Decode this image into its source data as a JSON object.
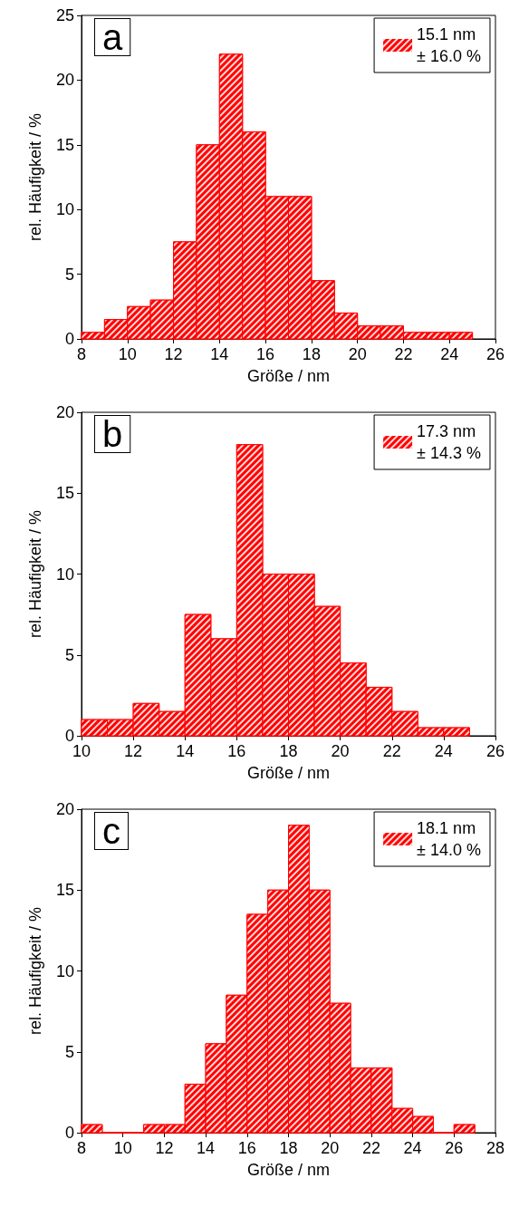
{
  "chart_data": [
    {
      "type": "histogram",
      "annotations": [
        "a"
      ],
      "xlabel": "Größe / nm",
      "ylabel": "rel. Häufigkeit / %",
      "bins": [
        8,
        9,
        10,
        11,
        12,
        13,
        14,
        15,
        16,
        17,
        18,
        19,
        20,
        21,
        22,
        23,
        24,
        25
      ],
      "series": [
        {
          "name": "15.1 nm\n± 16.0 %",
          "color": "#ff0000",
          "values": [
            0.5,
            1.5,
            2.5,
            3,
            7.5,
            15,
            22,
            16,
            11,
            11,
            4.5,
            2,
            1,
            1,
            0.5,
            0.5,
            0.5
          ]
        }
      ],
      "xlim": [
        8,
        26
      ],
      "xticks": [
        8,
        10,
        12,
        14,
        16,
        18,
        20,
        22,
        24,
        26
      ],
      "ylim": [
        0,
        25
      ],
      "yticks": [
        0,
        5,
        10,
        15,
        20,
        25
      ],
      "grid": false,
      "legend": "top right"
    },
    {
      "type": "histogram",
      "annotations": [
        "b"
      ],
      "xlabel": "Größe / nm",
      "ylabel": "rel. Häufigkeit / %",
      "bins": [
        10,
        11,
        12,
        13,
        14,
        15,
        16,
        17,
        18,
        19,
        20,
        21,
        22,
        23,
        24,
        25
      ],
      "series": [
        {
          "name": "17.3 nm\n± 14.3 %",
          "color": "#ff0000",
          "values": [
            1,
            1,
            2,
            1.5,
            7.5,
            6,
            18,
            10,
            10,
            8,
            4.5,
            3,
            1.5,
            0.5,
            0.5
          ]
        }
      ],
      "xlim": [
        10,
        26
      ],
      "xticks": [
        10,
        12,
        14,
        16,
        18,
        20,
        22,
        24,
        26
      ],
      "ylim": [
        0,
        20
      ],
      "yticks": [
        0,
        5,
        10,
        15,
        20
      ],
      "grid": false,
      "legend": "top right"
    },
    {
      "type": "histogram",
      "annotations": [
        "c"
      ],
      "xlabel": "Größe / nm",
      "ylabel": "rel. Häufigkeit / %",
      "bins": [
        8,
        9,
        10,
        11,
        12,
        13,
        14,
        15,
        16,
        17,
        18,
        19,
        20,
        21,
        22,
        23,
        24,
        25,
        26,
        27
      ],
      "series": [
        {
          "name": "18.1 nm\n± 14.0 %",
          "color": "#ff0000",
          "values": [
            0.5,
            0,
            0,
            0.5,
            0.5,
            3,
            5.5,
            8.5,
            13.5,
            15,
            19,
            15,
            8,
            4,
            4,
            1.5,
            1,
            0,
            0.5
          ]
        }
      ],
      "xlim": [
        8,
        28
      ],
      "xticks": [
        8,
        10,
        12,
        14,
        16,
        18,
        20,
        22,
        24,
        26,
        28
      ],
      "ylim": [
        0,
        20
      ],
      "yticks": [
        0,
        5,
        10,
        15,
        20
      ],
      "grid": false,
      "legend": "top right"
    }
  ]
}
